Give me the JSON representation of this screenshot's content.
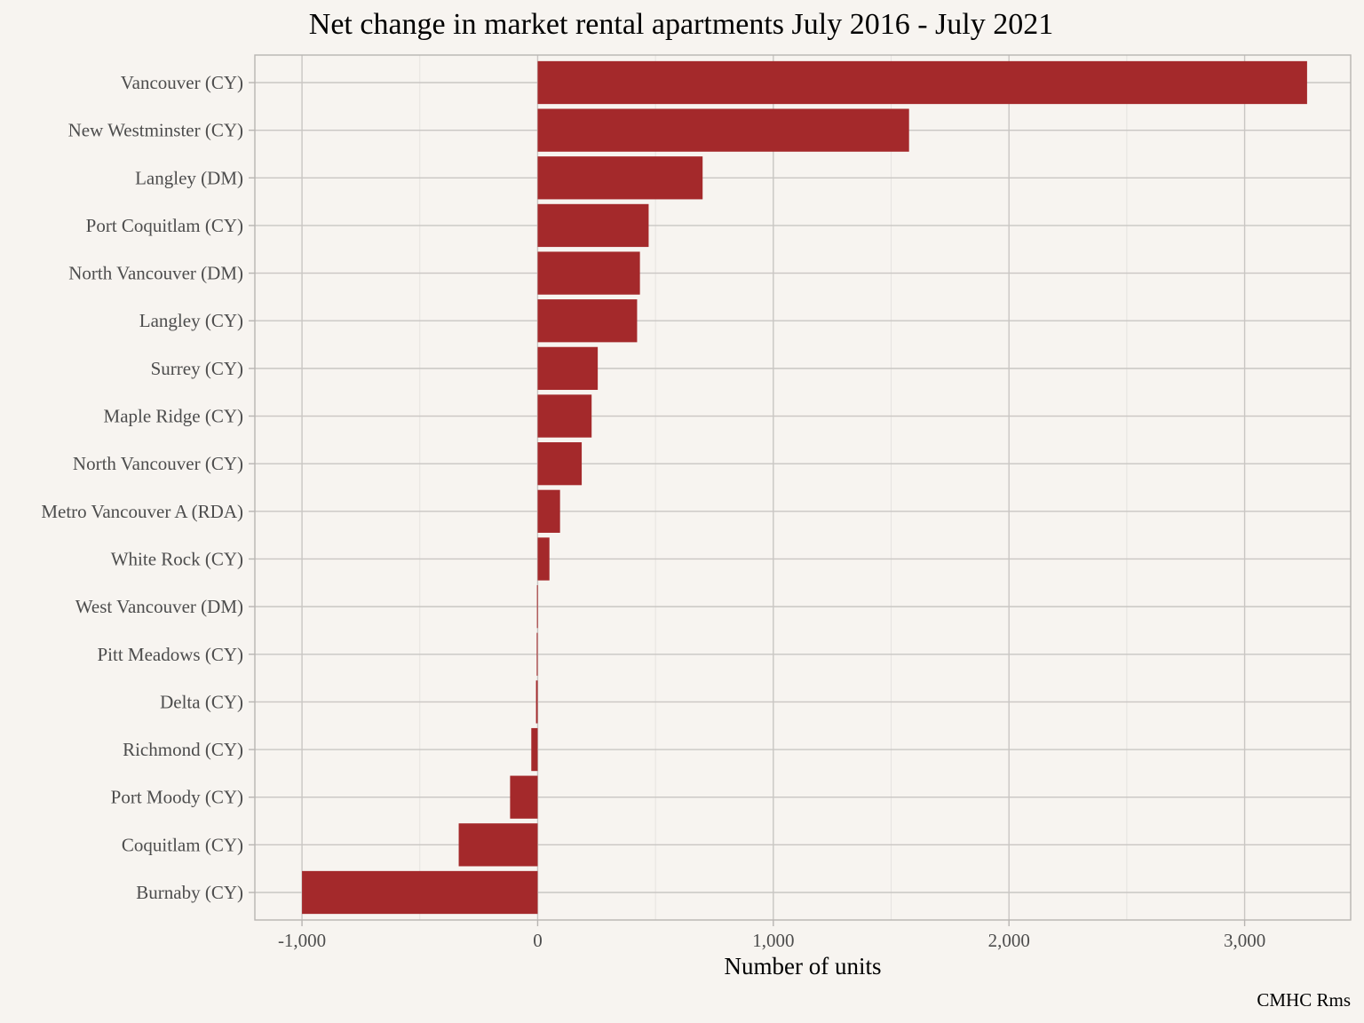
{
  "chart_data": {
    "type": "bar",
    "orientation": "horizontal",
    "title": "Net change in market rental apartments July 2016 - July 2021",
    "xlabel": "Number of units",
    "ylabel": "",
    "caption": "CMHC Rms",
    "xlim": [
      -1200,
      3450
    ],
    "x_ticks": [
      -1000,
      0,
      1000,
      2000,
      3000
    ],
    "x_tick_labels": [
      "-1,000",
      "0",
      "1,000",
      "2,000",
      "3,000"
    ],
    "grid": true,
    "bar_color": "#a4292b",
    "categories": [
      "Vancouver (CY)",
      "New Westminster (CY)",
      "Langley (DM)",
      "Port Coquitlam (CY)",
      "North Vancouver (DM)",
      "Langley (CY)",
      "Surrey (CY)",
      "Maple Ridge (CY)",
      "North Vancouver (CY)",
      "Metro Vancouver A (RDA)",
      "White Rock (CY)",
      "West Vancouver (DM)",
      "Pitt Meadows (CY)",
      "Delta (CY)",
      "Richmond (CY)",
      "Port Moody (CY)",
      "Coquitlam (CY)",
      "Burnaby (CY)"
    ],
    "values": [
      3265,
      1576,
      700,
      471,
      434,
      422,
      255,
      229,
      187,
      95,
      50,
      -3,
      -4,
      -7,
      -27,
      -117,
      -335,
      -1000
    ]
  }
}
